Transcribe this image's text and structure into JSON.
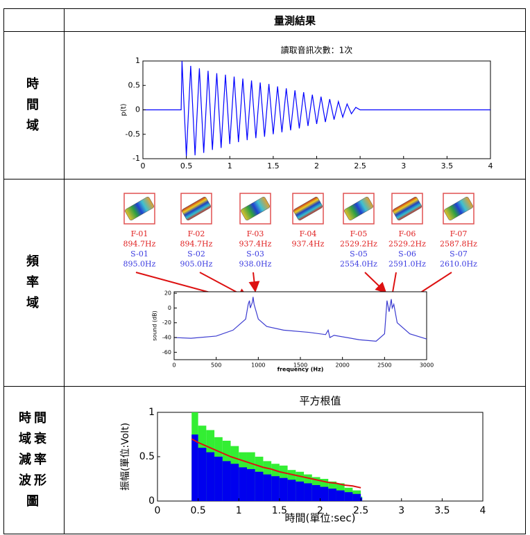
{
  "table": {
    "header": {
      "title": "量測結果"
    },
    "rows": [
      {
        "label": [
          "時",
          "間",
          "域"
        ]
      },
      {
        "label": [
          "頻",
          "率",
          "域"
        ]
      },
      {
        "label": [
          "時間",
          "域衰",
          "減率",
          "波形",
          "圖"
        ]
      }
    ]
  },
  "modes": [
    {
      "f": "F-01",
      "f_freq": "894.7Hz",
      "s": "S-01",
      "s_freq": "895.0Hz"
    },
    {
      "f": "F-02",
      "f_freq": "894.7Hz",
      "s": "S-02",
      "s_freq": "905.0Hz"
    },
    {
      "f": "F-03",
      "f_freq": "937.4Hz",
      "s": "S-03",
      "s_freq": "938.0Hz"
    },
    {
      "f": "F-04",
      "f_freq": "937.4Hz"
    },
    {
      "f": "F-05",
      "f_freq": "2529.2Hz",
      "s": "S-05",
      "s_freq": "2554.0Hz"
    },
    {
      "f": "F-06",
      "f_freq": "2529.2Hz",
      "s": "S-06",
      "s_freq": "2591.0Hz"
    },
    {
      "f": "F-07",
      "f_freq": "2587.8Hz",
      "s": "S-07",
      "s_freq": "2610.0Hz"
    }
  ],
  "chart_data": [
    {
      "type": "line",
      "title": "讀取音訊次數：1次",
      "ylabel": "p(t)",
      "xlim": [
        0,
        4
      ],
      "ylim": [
        -1,
        1
      ],
      "xticks": [
        0,
        0.5,
        1,
        1.5,
        2,
        2.5,
        3,
        3.5,
        4
      ],
      "yticks": [
        -1,
        -0.5,
        0,
        0.5,
        1
      ],
      "x": [
        0,
        0.44,
        0.45,
        0.5,
        0.55,
        0.6,
        0.65,
        0.7,
        0.75,
        0.8,
        0.85,
        0.9,
        0.95,
        1.0,
        1.05,
        1.1,
        1.15,
        1.2,
        1.25,
        1.3,
        1.35,
        1.4,
        1.45,
        1.5,
        1.55,
        1.6,
        1.65,
        1.7,
        1.75,
        1.8,
        1.85,
        1.9,
        1.95,
        2.0,
        2.05,
        2.1,
        2.15,
        2.2,
        2.25,
        2.3,
        2.35,
        2.4,
        2.45,
        2.5,
        4
      ],
      "series": [
        {
          "color": "#0000ff",
          "kind": "line",
          "values": [
            0,
            0,
            1.0,
            -0.95,
            0.9,
            -0.93,
            0.85,
            -0.88,
            0.8,
            -0.82,
            0.75,
            -0.78,
            0.72,
            -0.7,
            0.68,
            -0.66,
            0.64,
            -0.62,
            0.6,
            -0.58,
            0.56,
            -0.55,
            0.53,
            -0.5,
            0.48,
            -0.46,
            0.44,
            -0.42,
            0.4,
            -0.38,
            0.36,
            -0.33,
            0.31,
            -0.29,
            0.27,
            -0.25,
            0.22,
            -0.2,
            0.17,
            -0.15,
            0.12,
            -0.08,
            0.05,
            0,
            0
          ]
        }
      ]
    },
    {
      "type": "line",
      "xlabel": "frequency (Hz)",
      "ylabel": "sound (dB)",
      "xlim": [
        0,
        3000
      ],
      "ylim": [
        -70,
        22
      ],
      "xticks": [
        0,
        500,
        1000,
        1500,
        2000,
        2500,
        3000
      ],
      "yticks": [
        -60,
        -40,
        -20,
        0,
        20
      ],
      "x": [
        0,
        200,
        500,
        700,
        850,
        880,
        895,
        905,
        930,
        938,
        950,
        1000,
        1100,
        1300,
        1600,
        1800,
        1830,
        1850,
        1900,
        2200,
        2400,
        2500,
        2529,
        2554,
        2580,
        2591,
        2610,
        2650,
        2800,
        3000
      ],
      "series": [
        {
          "color": "#3b3bd0",
          "kind": "line",
          "values": [
            -40,
            -41,
            -38,
            -30,
            -15,
            5,
            10,
            0,
            8,
            15,
            5,
            -15,
            -25,
            -30,
            -33,
            -36,
            -30,
            -40,
            -37,
            -43,
            -45,
            -35,
            10,
            -5,
            12,
            0,
            5,
            -20,
            -35,
            -42
          ]
        }
      ]
    },
    {
      "type": "area",
      "title": "平方根值",
      "xlabel": "時間(單位:sec)",
      "ylabel": "振幅(單位:Volt)",
      "xlim": [
        0,
        4
      ],
      "ylim": [
        0,
        1
      ],
      "xticks": [
        0,
        0.5,
        1,
        1.5,
        2,
        2.5,
        3,
        3.5,
        4
      ],
      "yticks": [
        0,
        0.5,
        1
      ],
      "x": [
        0.42,
        0.5,
        0.6,
        0.7,
        0.8,
        0.9,
        1.0,
        1.1,
        1.2,
        1.3,
        1.4,
        1.5,
        1.6,
        1.7,
        1.8,
        1.9,
        2.0,
        2.1,
        2.2,
        2.3,
        2.4,
        2.5
      ],
      "series": [
        {
          "color": "#33ee33",
          "kind": "area",
          "values": [
            1.0,
            0.85,
            0.8,
            0.72,
            0.68,
            0.62,
            0.55,
            0.55,
            0.5,
            0.45,
            0.42,
            0.4,
            0.35,
            0.33,
            0.3,
            0.27,
            0.25,
            0.22,
            0.2,
            0.15,
            0.12,
            0.05
          ]
        },
        {
          "color": "#0000ee",
          "kind": "area",
          "values": [
            0.75,
            0.6,
            0.55,
            0.5,
            0.45,
            0.42,
            0.38,
            0.36,
            0.33,
            0.3,
            0.28,
            0.26,
            0.24,
            0.22,
            0.2,
            0.18,
            0.16,
            0.14,
            0.12,
            0.1,
            0.08,
            0.04
          ]
        },
        {
          "color": "#dd1111",
          "kind": "line",
          "values": [
            0.7,
            0.66,
            0.62,
            0.58,
            0.54,
            0.5,
            0.47,
            0.44,
            0.41,
            0.38,
            0.36,
            0.33,
            0.31,
            0.29,
            0.27,
            0.25,
            0.23,
            0.21,
            0.2,
            0.18,
            0.17,
            0.15
          ]
        }
      ]
    }
  ]
}
